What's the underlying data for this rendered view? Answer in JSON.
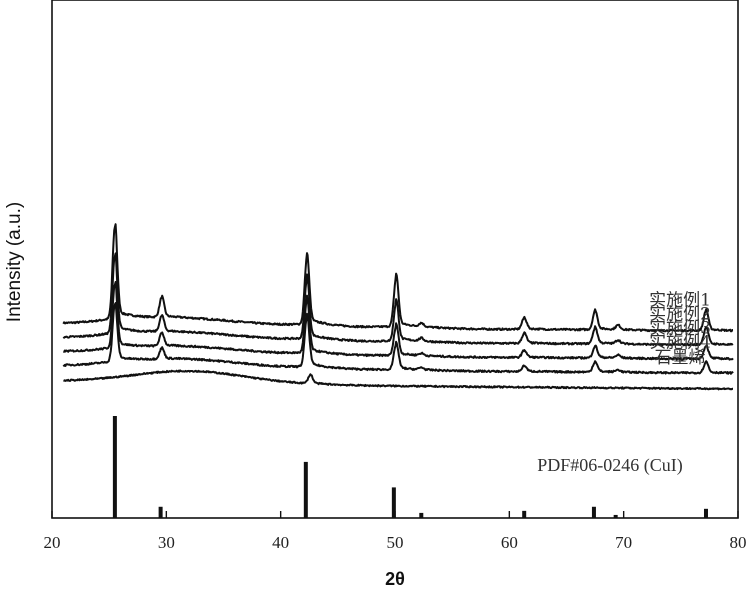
{
  "chart_data": {
    "type": "line",
    "xlabel": "2θ",
    "ylabel": "Intensity (a.u.)",
    "xlim": [
      20,
      80
    ],
    "xticks": [
      20,
      30,
      40,
      50,
      60,
      70,
      80
    ],
    "grid": false,
    "series": [
      {
        "name": "实施例1",
        "baseline": 0.82,
        "hump": 0.1,
        "noise": 0.012,
        "peaks": [
          [
            25.5,
            1.3
          ],
          [
            29.6,
            0.28
          ],
          [
            42.3,
            0.95
          ],
          [
            50.1,
            0.7
          ],
          [
            52.3,
            0.05
          ],
          [
            61.3,
            0.16
          ],
          [
            67.5,
            0.26
          ],
          [
            69.5,
            0.06
          ],
          [
            77.2,
            0.28
          ]
        ]
      },
      {
        "name": "实施例2",
        "baseline": 0.62,
        "hump": 0.1,
        "noise": 0.012,
        "peaks": [
          [
            25.5,
            1.1
          ],
          [
            29.6,
            0.22
          ],
          [
            42.3,
            0.85
          ],
          [
            50.1,
            0.55
          ],
          [
            52.3,
            0.04
          ],
          [
            61.3,
            0.14
          ],
          [
            67.5,
            0.22
          ],
          [
            69.5,
            0.05
          ],
          [
            77.2,
            0.24
          ]
        ]
      },
      {
        "name": "实施例3",
        "baseline": 0.42,
        "hump": 0.1,
        "noise": 0.012,
        "peaks": [
          [
            25.5,
            0.9
          ],
          [
            29.6,
            0.18
          ],
          [
            42.3,
            0.75
          ],
          [
            50.1,
            0.42
          ],
          [
            52.3,
            0.03
          ],
          [
            61.3,
            0.1
          ],
          [
            67.5,
            0.16
          ],
          [
            69.5,
            0.04
          ],
          [
            77.2,
            0.18
          ]
        ]
      },
      {
        "name": "实施例4",
        "baseline": 0.22,
        "hump": 0.12,
        "noise": 0.012,
        "peaks": [
          [
            25.5,
            0.8
          ],
          [
            29.6,
            0.15
          ],
          [
            42.3,
            0.7
          ],
          [
            50.1,
            0.36
          ],
          [
            52.3,
            0.03
          ],
          [
            61.3,
            0.08
          ],
          [
            67.5,
            0.14
          ],
          [
            69.5,
            0.03
          ],
          [
            77.2,
            0.15
          ]
        ]
      },
      {
        "name": "石墨烯",
        "baseline": 0.0,
        "hump": 0.18,
        "noise": 0.01,
        "peaks": [
          [
            42.6,
            0.12
          ]
        ]
      }
    ],
    "reference": {
      "name": "PDF#06-0246 (CuI)",
      "peaks": [
        {
          "x": 25.5,
          "h": 100
        },
        {
          "x": 29.5,
          "h": 11
        },
        {
          "x": 42.2,
          "h": 55
        },
        {
          "x": 49.9,
          "h": 30
        },
        {
          "x": 52.3,
          "h": 5
        },
        {
          "x": 61.3,
          "h": 7
        },
        {
          "x": 67.4,
          "h": 11
        },
        {
          "x": 69.3,
          "h": 3
        },
        {
          "x": 77.2,
          "h": 9
        }
      ]
    }
  }
}
